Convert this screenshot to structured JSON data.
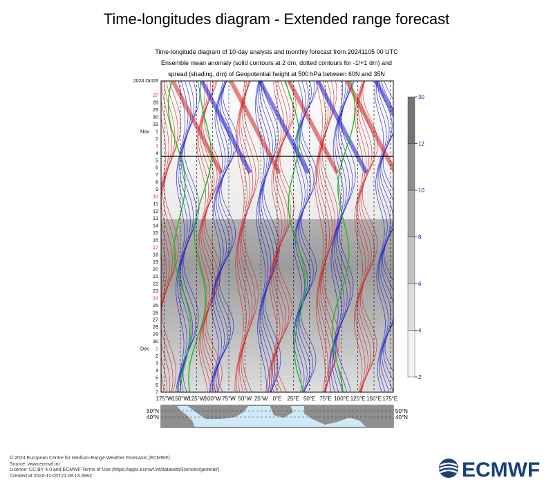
{
  "header": {
    "title": "Time-longitudes diagram - Extended range forecast",
    "subtitle_line1": "Time-longitude diagram of 10-day analysis and monthly forecast from 20241105 00 UTC",
    "subtitle_line2": "Ensemble mean anomaly (solid contours at 2 dm, dotted contours for -1/+1 dm) and",
    "subtitle_line3": "spread (shading, dm) of Geopotential height at 500 hPa between 60N and 35N"
  },
  "chart_data": {
    "type": "heatmap",
    "title": "Time-longitudes diagram - Extended range forecast",
    "x_ticks": [
      "175°W",
      "150°W",
      "125°W",
      "100°W",
      "75°W",
      "50°W",
      "25°W",
      "0°E",
      "25°E",
      "50°E",
      "75°E",
      "100°E",
      "125°E",
      "150°E",
      "175°E"
    ],
    "x_values": [
      -175,
      -150,
      -125,
      -100,
      -75,
      -50,
      -25,
      0,
      25,
      50,
      75,
      100,
      125,
      150,
      175
    ],
    "xlim": [
      -180,
      180
    ],
    "y_labels": [
      {
        "text": "2024 Oct26",
        "red": false
      },
      {
        "text": "27",
        "red": true
      },
      {
        "text": "28",
        "red": false
      },
      {
        "text": "29",
        "red": false
      },
      {
        "text": "30",
        "red": false
      },
      {
        "text": "31",
        "red": false
      },
      {
        "text": "1",
        "red": false,
        "month": "Nov"
      },
      {
        "text": "2",
        "red": false
      },
      {
        "text": "3",
        "red": true
      },
      {
        "text": "4",
        "red": false
      },
      {
        "text": "5",
        "red": false
      },
      {
        "text": "6",
        "red": false
      },
      {
        "text": "7",
        "red": false
      },
      {
        "text": "8",
        "red": false
      },
      {
        "text": "9",
        "red": false
      },
      {
        "text": "10",
        "red": true
      },
      {
        "text": "11",
        "red": false
      },
      {
        "text": "12",
        "red": false
      },
      {
        "text": "13",
        "red": false
      },
      {
        "text": "14",
        "red": false
      },
      {
        "text": "15",
        "red": false
      },
      {
        "text": "16",
        "red": false
      },
      {
        "text": "17",
        "red": true
      },
      {
        "text": "18",
        "red": false
      },
      {
        "text": "19",
        "red": false
      },
      {
        "text": "20",
        "red": false
      },
      {
        "text": "21",
        "red": false
      },
      {
        "text": "22",
        "red": false
      },
      {
        "text": "23",
        "red": false
      },
      {
        "text": "24",
        "red": true
      },
      {
        "text": "25",
        "red": false
      },
      {
        "text": "26",
        "red": false
      },
      {
        "text": "27",
        "red": false
      },
      {
        "text": "28",
        "red": false
      },
      {
        "text": "29",
        "red": false
      },
      {
        "text": "30",
        "red": false
      },
      {
        "text": "1",
        "red": true,
        "month": "Dec"
      },
      {
        "text": "2",
        "red": false
      },
      {
        "text": "3",
        "red": false
      },
      {
        "text": "4",
        "red": false
      },
      {
        "text": "5",
        "red": false
      },
      {
        "text": "6",
        "red": false
      },
      {
        "text": "7",
        "red": false
      }
    ],
    "analysis_boundary_label": "5",
    "colorbar": {
      "min": 2,
      "max": 30,
      "ticks": [
        2,
        4,
        6,
        8,
        10,
        12,
        30
      ],
      "unit": "dm"
    },
    "map_lat_labels": [
      "50°N",
      "40°N"
    ]
  },
  "footer": {
    "line1": "© 2024 European Centre for Medium-Range Weather Forecasts (ECMWF)",
    "line2": "Source: www.ecmwf.int",
    "line3": "Licence: CC BY 4.0 and ECMWF Terms of Use (https://apps.ecmwf.int/datasets/licences/general/)",
    "line4": "Created at 2024-11-05T21:08:13.398Z"
  },
  "logo": {
    "text": "ECMWF"
  },
  "colors": {
    "red_contour": "#d42020",
    "blue_contour": "#1a1ad0",
    "green_contour": "#18c018",
    "brand": "#1b3f7a"
  }
}
